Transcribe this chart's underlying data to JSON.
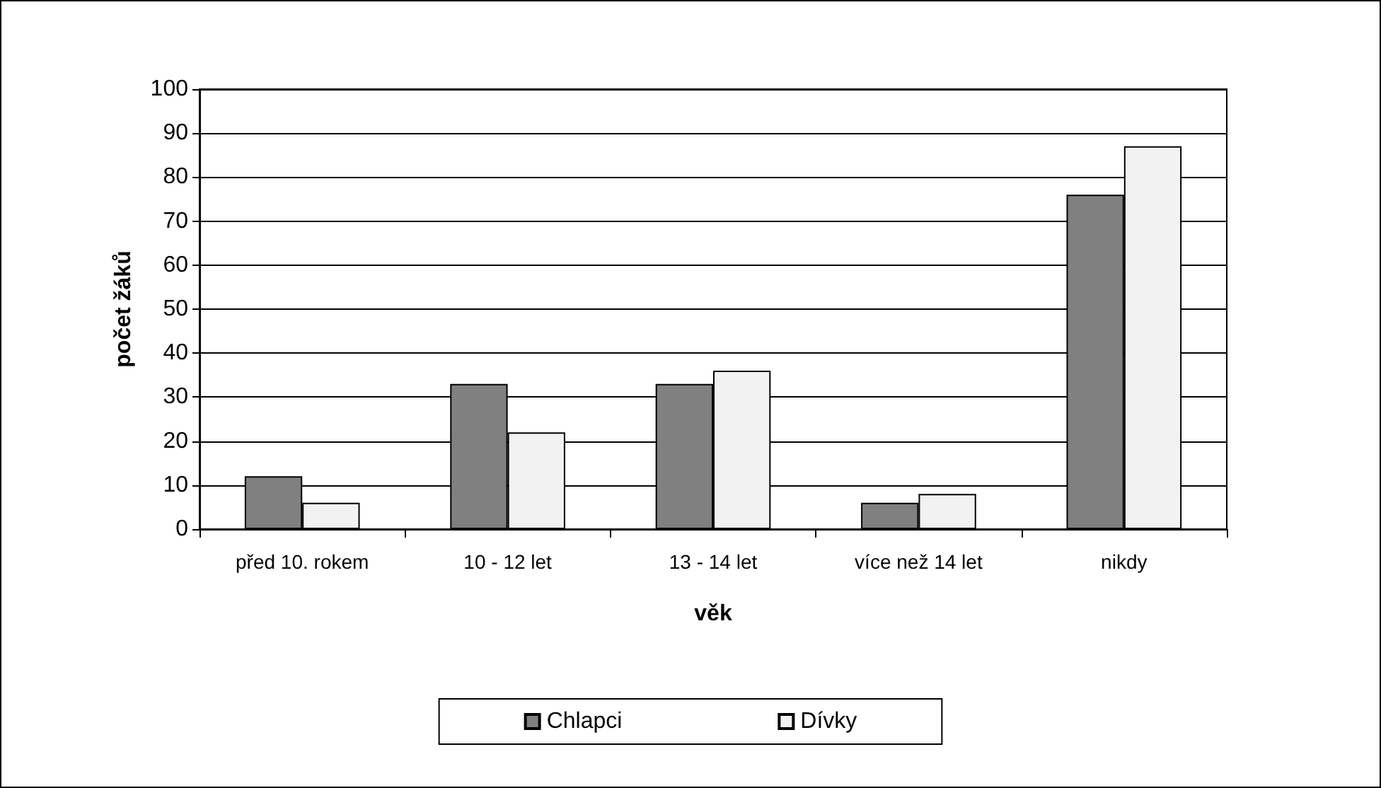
{
  "chart_data": {
    "type": "bar",
    "xlabel": "věk",
    "ylabel": "počet žáků",
    "categories": [
      "před 10. rokem",
      "10 - 12 let",
      "13 - 14 let",
      "více než 14 let",
      "nikdy"
    ],
    "series": [
      {
        "name": "Chlapci",
        "color": "#808080",
        "values": [
          12,
          33,
          33,
          6,
          76
        ]
      },
      {
        "name": "Dívky",
        "color": "#f2f2f2",
        "values": [
          6,
          22,
          36,
          8,
          87
        ]
      }
    ],
    "ylim": [
      0,
      100
    ],
    "yticks": [
      0,
      10,
      20,
      30,
      40,
      50,
      60,
      70,
      80,
      90,
      100
    ],
    "grid": "y",
    "legend": "bottom"
  }
}
